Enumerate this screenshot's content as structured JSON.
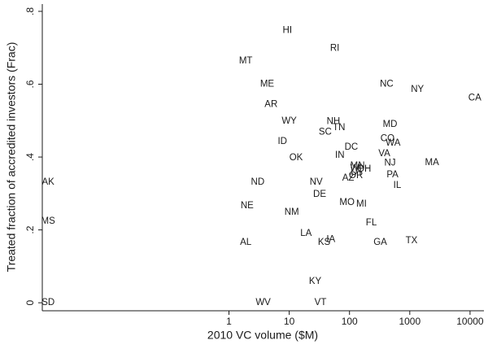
{
  "chart_data": {
    "type": "scatter",
    "xlabel": "2010 VC volume ($M)",
    "ylabel": "Treated fraction of accredited investors (Frac)",
    "xscale": "log",
    "color": "#1a1a1a",
    "labels": [
      "HI",
      "RI",
      "MT",
      "ME",
      "NC",
      "NY",
      "CA",
      "AR",
      "WY",
      "NH",
      "TN",
      "SC",
      "MD",
      "CO",
      "WA",
      "ID",
      "DC",
      "IN",
      "OK",
      "VA",
      "NJ",
      "MA",
      "MN",
      "WI",
      "OH",
      "UT",
      "OR",
      "AZ",
      "PA",
      "IL",
      "AK",
      "ND",
      "NV",
      "DE",
      "NE",
      "NM",
      "MO",
      "MI",
      "MS",
      "FL",
      "LA",
      "KS",
      "IA",
      "GA",
      "TX",
      "AL",
      "KY",
      "SD",
      "WV",
      "VT"
    ],
    "x": [
      9.3,
      57,
      1.9,
      4.3,
      414,
      1340,
      12000,
      5.0,
      10,
      54,
      67,
      39.5,
      470,
      427,
      529,
      7.7,
      107,
      69,
      13,
      378,
      470,
      2340,
      136,
      128,
      175,
      133,
      128,
      95,
      517,
      620,
      0.001,
      3.0,
      28,
      32,
      2.0,
      11,
      91,
      158,
      0.001,
      230,
      19,
      38,
      49,
      324,
      1070,
      1.9,
      27,
      0.001,
      3.7,
      33
    ],
    "values": [
      0.747,
      0.698,
      0.664,
      0.6,
      0.6,
      0.586,
      0.562,
      0.544,
      0.499,
      0.497,
      0.481,
      0.468,
      0.49,
      0.45,
      0.438,
      0.443,
      0.427,
      0.405,
      0.398,
      0.409,
      0.383,
      0.385,
      0.376,
      0.369,
      0.367,
      0.358,
      0.349,
      0.342,
      0.351,
      0.322,
      0.331,
      0.331,
      0.331,
      0.298,
      0.266,
      0.248,
      0.275,
      0.271,
      0.224,
      0.219,
      0.19,
      0.166,
      0.174,
      0.166,
      0.17,
      0.166,
      0.058,
      0,
      0,
      0
    ],
    "xlim": [
      0.0008,
      17000
    ],
    "ylim": [
      -0.022,
      0.82
    ],
    "xticks": [
      1,
      10,
      100,
      1000,
      10000
    ],
    "yticks": [
      0,
      {
        "value": 0.2,
        "label": ".2"
      },
      {
        "value": 0.4,
        "label": ".4"
      },
      {
        "value": 0.6,
        "label": ".6"
      },
      {
        "value": 0.8,
        "label": ".8"
      }
    ],
    "grid": false
  }
}
